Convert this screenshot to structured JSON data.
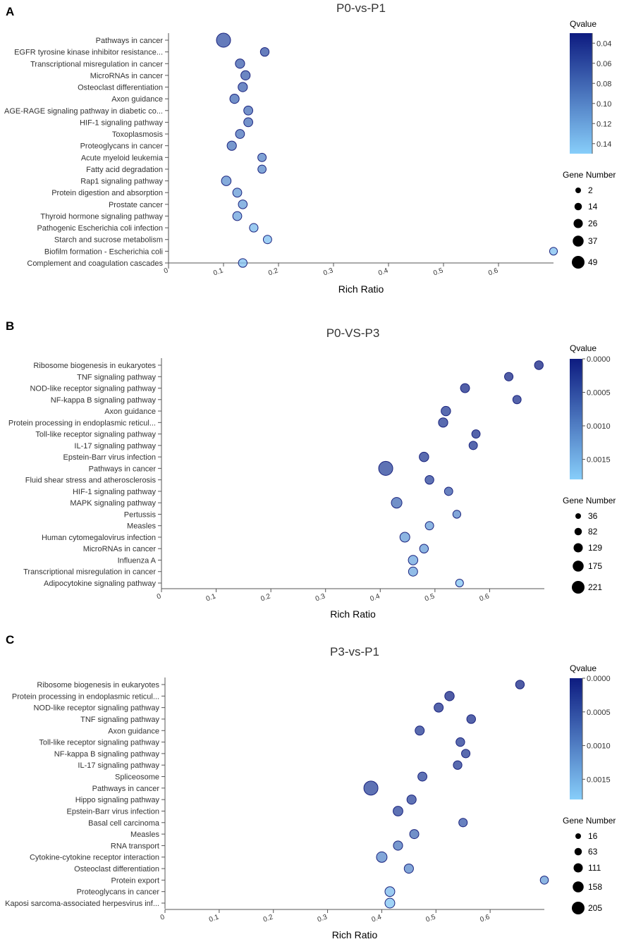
{
  "colors": {
    "q_low": "#87cefa",
    "q_high": "#0d1b80",
    "point_stroke": "#1a237e",
    "axis": "#555555",
    "text": "#333333",
    "label": "#000000"
  },
  "legend_titles": {
    "qvalue": "Qvalue",
    "gene_number": "Gene Number"
  },
  "chart_data": [
    {
      "type": "scatter",
      "panel_label": "A",
      "title": "P0-vs-P1",
      "xlabel": "Rich Ratio",
      "ylabel": "",
      "xlim": [
        0,
        0.7
      ],
      "xticks": [
        0,
        0.1,
        0.2,
        0.3,
        0.4,
        0.5,
        0.6
      ],
      "xtick_labels": [
        "0",
        "0.1",
        "0.2",
        "0.3",
        "0.4",
        "0.5",
        "0.6"
      ],
      "categories": [
        "Pathways in cancer",
        "EGFR tyrosine kinase inhibitor resistance...",
        "Transcriptional misregulation in cancer",
        "MicroRNAs in cancer",
        "Osteoclast differentiation",
        "Axon guidance",
        "AGE-RAGE signaling pathway in diabetic co...",
        "HIF-1 signaling pathway",
        "Toxoplasmosis",
        "Proteoglycans in cancer",
        "Acute myeloid leukemia",
        "Fatty acid degradation",
        "Rap1 signaling pathway",
        "Protein digestion and absorption",
        "Prostate cancer",
        "Thyroid hormone signaling pathway",
        "Pathogenic Escherichia coli infection",
        "Starch and sucrose metabolism",
        "Biofilm formation - Escherichia coli",
        "Complement and coagulation cascades"
      ],
      "rich_ratio": [
        0.1,
        0.175,
        0.13,
        0.14,
        0.135,
        0.12,
        0.145,
        0.145,
        0.13,
        0.115,
        0.17,
        0.17,
        0.105,
        0.125,
        0.135,
        0.125,
        0.155,
        0.18,
        0.7,
        0.135
      ],
      "gene_number": [
        49,
        13,
        17,
        17,
        17,
        17,
        15,
        15,
        15,
        17,
        11,
        10,
        19,
        15,
        14,
        15,
        12,
        11,
        7,
        13
      ],
      "qvalue": [
        0.065,
        0.067,
        0.075,
        0.075,
        0.077,
        0.082,
        0.085,
        0.085,
        0.088,
        0.09,
        0.1,
        0.103,
        0.108,
        0.115,
        0.118,
        0.12,
        0.135,
        0.14,
        0.14,
        0.14
      ],
      "color_range": [
        0.03,
        0.15
      ],
      "color_ticks": [
        "0.04",
        "0.06",
        "0.08",
        "0.10",
        "0.12",
        "0.14"
      ],
      "size_legend": [
        2,
        14,
        26,
        37,
        49
      ],
      "size_range": [
        2,
        49
      ]
    },
    {
      "type": "scatter",
      "panel_label": "B",
      "title": "P0-VS-P3",
      "xlabel": "Rich Ratio",
      "ylabel": "",
      "xlim": [
        0,
        0.7
      ],
      "xticks": [
        0,
        0.1,
        0.2,
        0.3,
        0.4,
        0.5,
        0.6
      ],
      "xtick_labels": [
        "0",
        "0.1",
        "0.2",
        "0.3",
        "0.4",
        "0.5",
        "0.6"
      ],
      "categories": [
        "Ribosome biogenesis in eukaryotes",
        "TNF signaling pathway",
        "NOD-like receptor signaling pathway",
        "NF-kappa B signaling pathway",
        "Axon guidance",
        "Protein processing in endoplasmic reticul...",
        "Toll-like receptor signaling pathway",
        "IL-17 signaling pathway",
        "Epstein-Barr virus infection",
        "Pathways in cancer",
        "Fluid shear stress and atherosclerosis",
        "HIF-1 signaling pathway",
        "MAPK signaling pathway",
        "Pertussis",
        "Measles",
        "Human cytomegalovirus infection",
        "MicroRNAs in cancer",
        "Influenza A",
        "Transcriptional misregulation in cancer",
        "Adipocytokine signaling pathway"
      ],
      "rich_ratio": [
        0.69,
        0.635,
        0.555,
        0.65,
        0.52,
        0.515,
        0.575,
        0.57,
        0.48,
        0.41,
        0.49,
        0.525,
        0.43,
        0.54,
        0.49,
        0.445,
        0.48,
        0.46,
        0.46,
        0.545
      ],
      "gene_number": [
        80,
        75,
        90,
        70,
        100,
        95,
        70,
        72,
        100,
        221,
        80,
        70,
        130,
        60,
        72,
        110,
        80,
        100,
        90,
        55
      ],
      "qvalue": [
        5e-05,
        0.0001,
        0.00015,
        0.0002,
        0.0003,
        0.0003,
        0.0002,
        0.00025,
        0.0003,
        0.0004,
        0.0004,
        0.0006,
        0.0008,
        0.0011,
        0.0013,
        0.0013,
        0.0013,
        0.0014,
        0.0014,
        0.0017
      ],
      "color_range": [
        0,
        0.0018
      ],
      "color_ticks": [
        "0.0000",
        "0.0005",
        "0.0010",
        "0.0015"
      ],
      "size_legend": [
        36,
        82,
        129,
        175,
        221
      ],
      "size_range": [
        36,
        221
      ]
    },
    {
      "type": "scatter",
      "panel_label": "C",
      "title": "P3-vs-P1",
      "xlabel": "Rich Ratio",
      "ylabel": "",
      "xlim": [
        0,
        0.7
      ],
      "xticks": [
        0,
        0.1,
        0.2,
        0.3,
        0.4,
        0.5,
        0.6
      ],
      "xtick_labels": [
        "0",
        "0.1",
        "0.2",
        "0.3",
        "0.4",
        "0.5",
        "0.6"
      ],
      "categories": [
        "Ribosome biogenesis in eukaryotes",
        "Protein processing in endoplasmic reticul...",
        "NOD-like receptor signaling pathway",
        "TNF signaling pathway",
        "Axon guidance",
        "Toll-like receptor signaling pathway",
        "NF-kappa B signaling pathway",
        "IL-17 signaling pathway",
        "Spliceosome",
        "Pathways in cancer",
        "Hippo signaling pathway",
        "Epstein-Barr virus infection",
        "Basal cell carcinoma",
        "Measles",
        "RNA transport",
        "Cytokine-cytokine receptor interaction",
        "Osteoclast differentiation",
        "Protein export",
        "Proteoglycans in cancer",
        "Kaposi sarcoma-associated herpesvirus inf..."
      ],
      "rich_ratio": [
        0.655,
        0.525,
        0.505,
        0.565,
        0.47,
        0.545,
        0.555,
        0.54,
        0.475,
        0.38,
        0.455,
        0.43,
        0.55,
        0.46,
        0.43,
        0.4,
        0.45,
        0.7,
        0.415,
        0.415
      ],
      "gene_number": [
        60,
        80,
        72,
        62,
        72,
        60,
        55,
        58,
        70,
        205,
        75,
        88,
        55,
        72,
        75,
        110,
        75,
        45,
        90,
        90
      ],
      "qvalue": [
        0.0001,
        0.0001,
        0.0002,
        0.0002,
        0.0003,
        0.0003,
        0.0003,
        0.0003,
        0.0004,
        0.0004,
        0.0004,
        0.0004,
        0.0006,
        0.0008,
        0.0009,
        0.0011,
        0.0011,
        0.0013,
        0.0016,
        0.0017
      ],
      "color_range": [
        0,
        0.0018
      ],
      "color_ticks": [
        "0.0000",
        "0.0005",
        "0.0010",
        "0.0015"
      ],
      "size_legend": [
        16,
        63,
        111,
        158,
        205
      ],
      "size_range": [
        16,
        205
      ]
    }
  ]
}
